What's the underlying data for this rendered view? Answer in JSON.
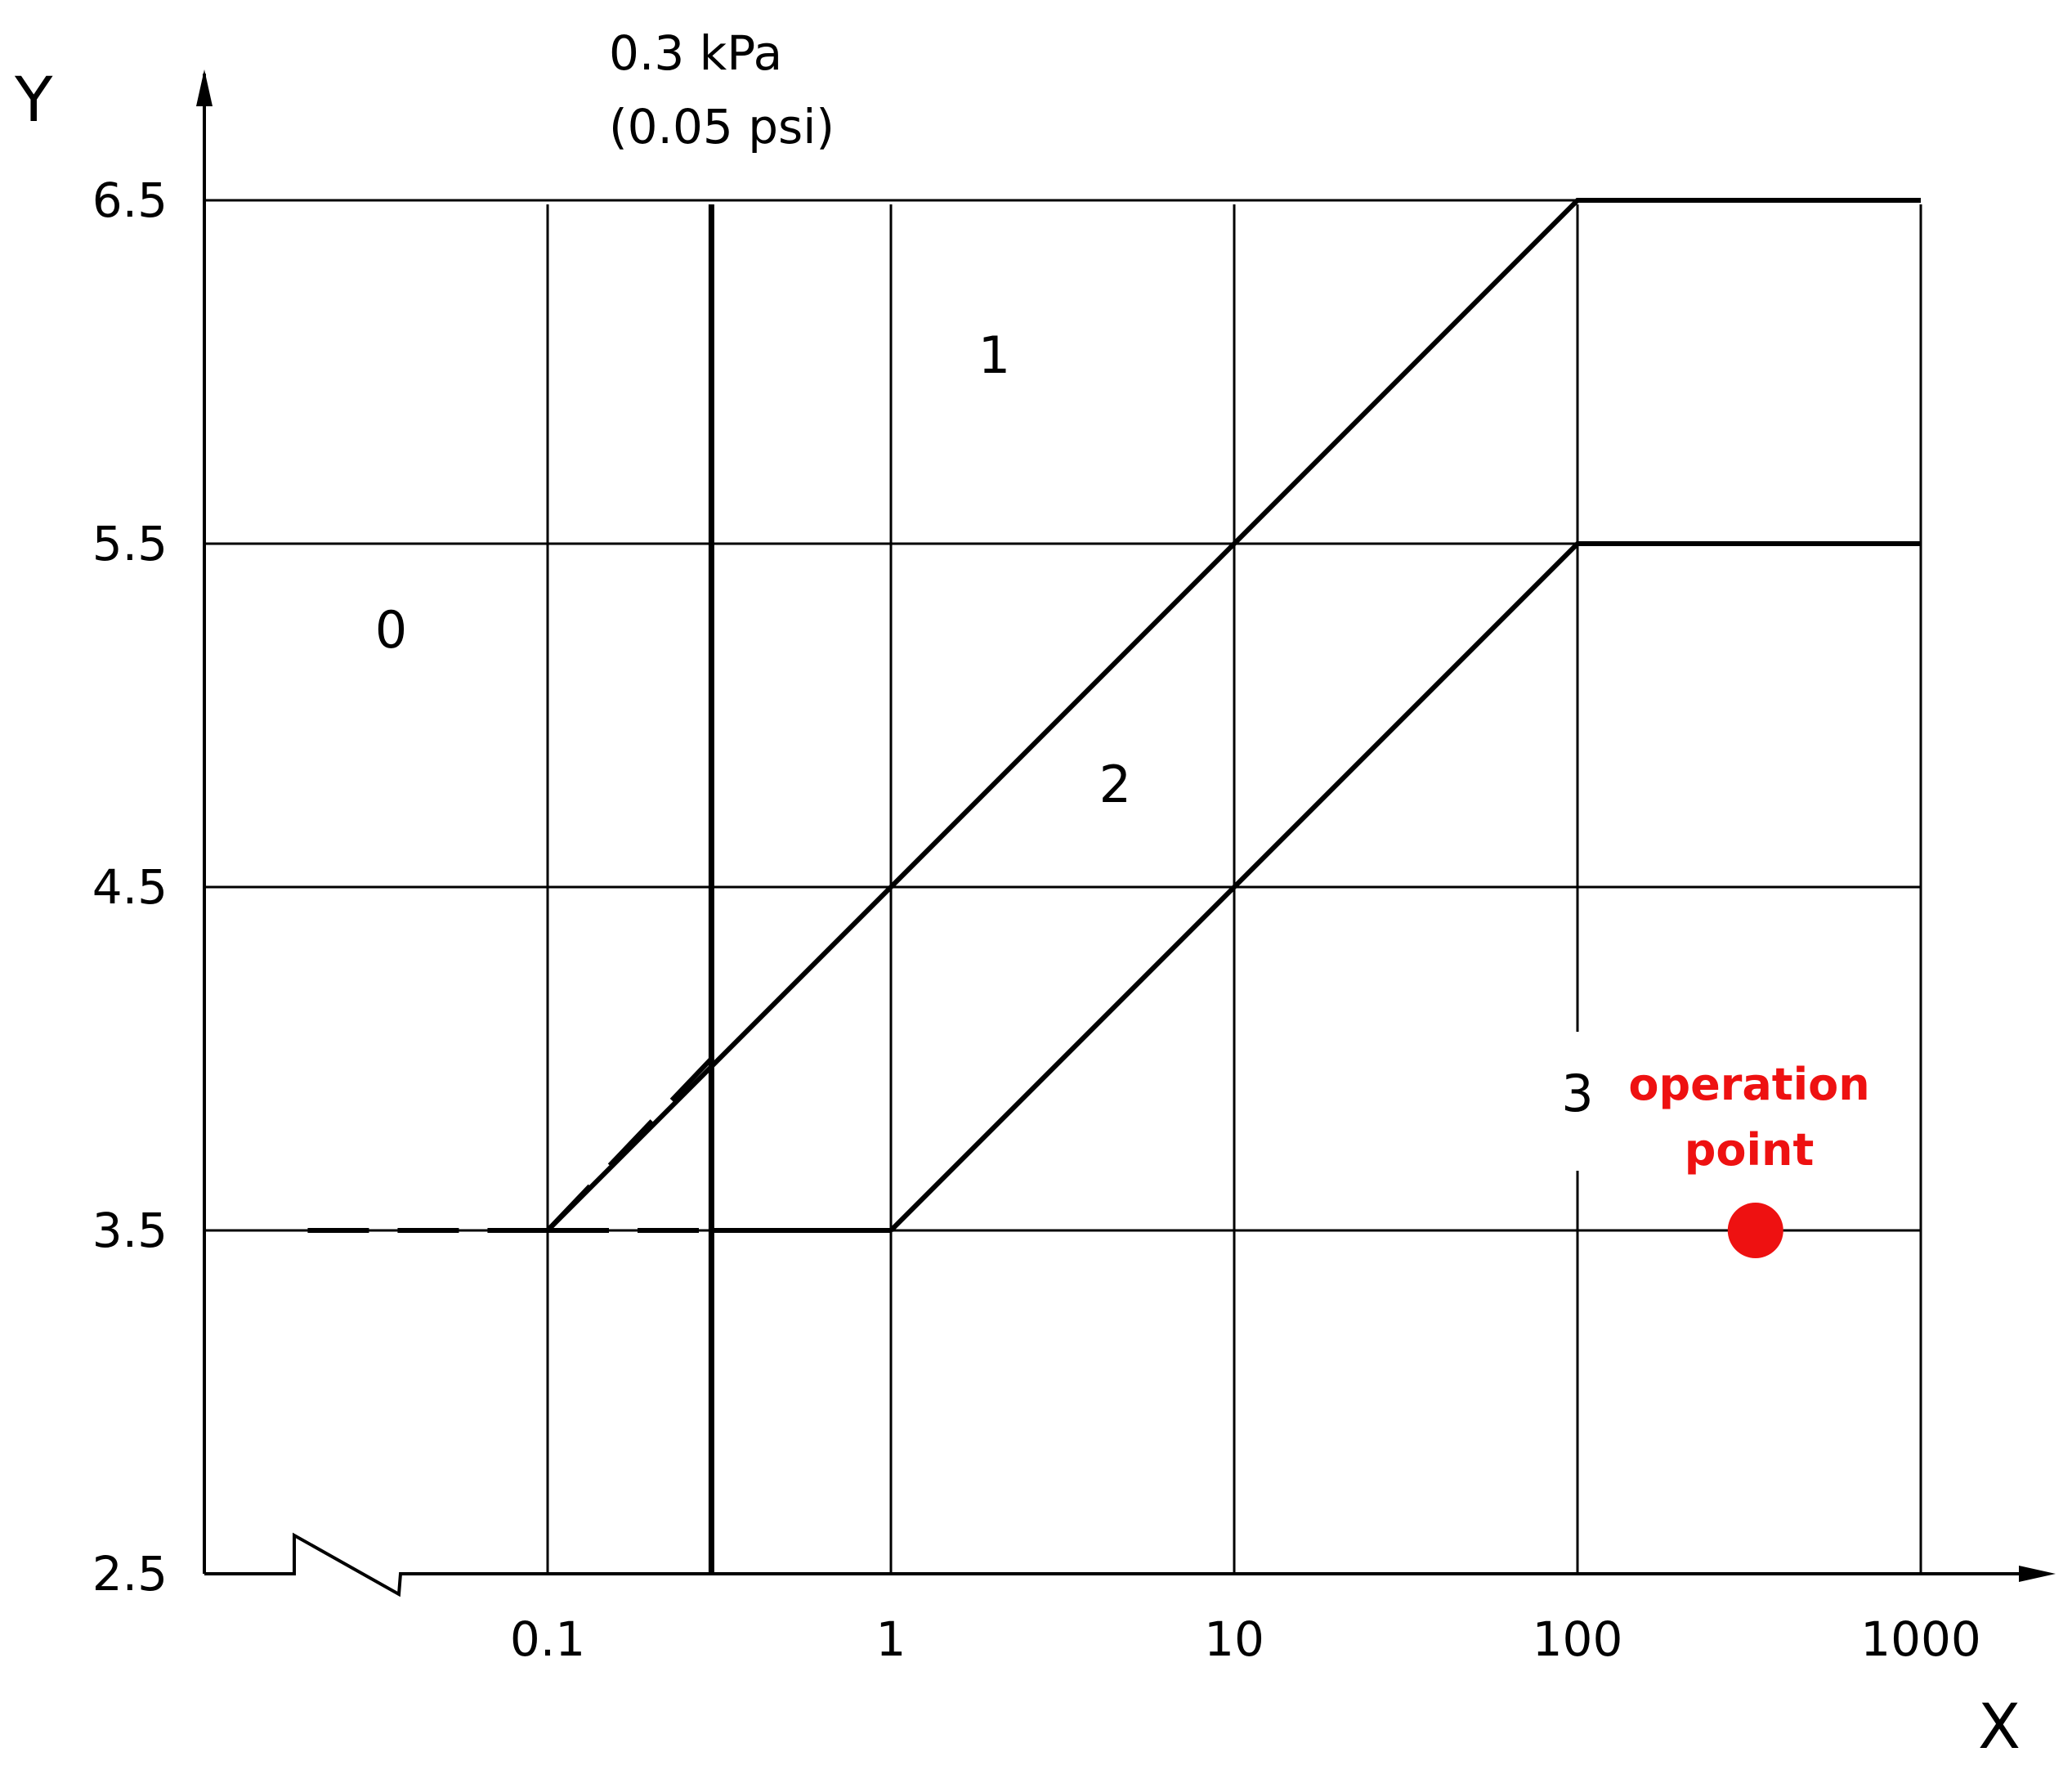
{
  "chart_data": {
    "type": "line",
    "x_axis": {
      "label": "X",
      "scale": "log",
      "range": [
        0.1,
        1000
      ],
      "ticks": [
        0.1,
        1,
        10,
        100,
        1000
      ],
      "tick_labels": [
        "0.1",
        "1",
        "10",
        "100",
        "1000"
      ],
      "axis_break": true
    },
    "y_axis": {
      "label": "Y",
      "scale": "linear",
      "range": [
        2.5,
        6.5
      ],
      "ticks": [
        2.5,
        3.5,
        4.5,
        5.5,
        6.5
      ],
      "tick_labels": [
        "2.5",
        "3.5",
        "4.5",
        "5.5",
        "6.5"
      ]
    },
    "grid": true,
    "series": [
      {
        "style": "solid",
        "points": [
          [
            0.1,
            3.5
          ],
          [
            100,
            6.5
          ],
          [
            1000,
            6.5
          ]
        ],
        "dashed_segments": [
          [
            [
              0.02,
              3.5
            ],
            [
              0.1,
              3.5
            ]
          ],
          [
            [
              0.1,
              3.5
            ],
            [
              0.3,
              4.0
            ]
          ]
        ]
      },
      {
        "style": "solid",
        "points": [
          [
            1,
            3.5
          ],
          [
            100,
            5.5
          ],
          [
            1000,
            5.5
          ]
        ],
        "dashed_segments": [
          [
            [
              0.1,
              3.5
            ],
            [
              0.3,
              3.5
            ]
          ]
        ],
        "extra_solid": [
          [
            [
              0.3,
              3.5
            ],
            [
              1,
              3.5
            ]
          ]
        ]
      }
    ],
    "reference_line": {
      "x": 0.3,
      "label_line1": "0.3 kPa",
      "label_line2": "(0.05 psi)"
    },
    "regions": [
      {
        "label": "0",
        "x": 0.035,
        "y": 5.25
      },
      {
        "label": "1",
        "x": 2,
        "y": 6.05
      },
      {
        "label": "2",
        "x": 4.5,
        "y": 4.8
      },
      {
        "label": "3",
        "x": 100,
        "y": 3.9
      }
    ],
    "annotation": {
      "text_line1": "operation",
      "text_line2": "point",
      "x": 330,
      "y": 3.5,
      "color": "#ee1111"
    }
  }
}
